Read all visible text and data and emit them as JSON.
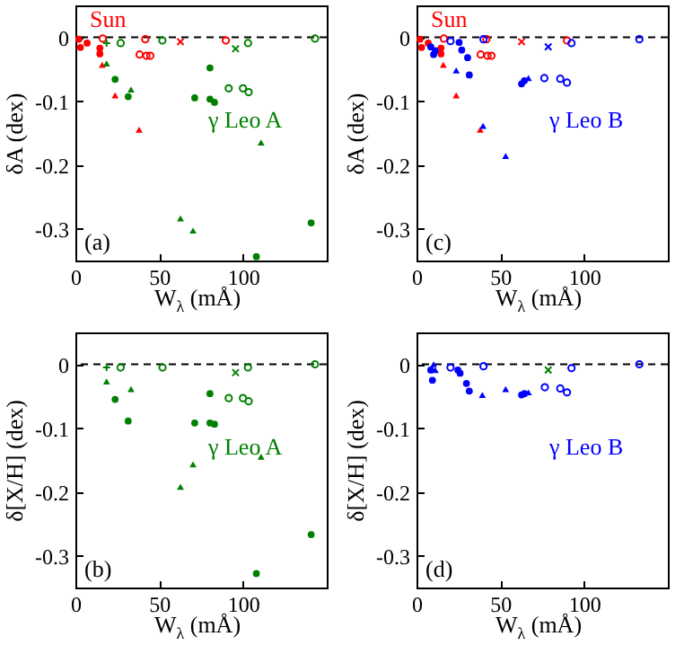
{
  "chart_data": [
    {
      "type": "scatter",
      "xlabel": "W$_{λ}$ (mÅ)",
      "ylabel": "δA (dex)",
      "xlim": [
        0,
        150
      ],
      "ylim": [
        -0.35,
        0.05
      ],
      "xticks": [
        0,
        50,
        100
      ],
      "yticks": [
        0,
        -0.1,
        -0.2,
        -0.3
      ],
      "ref_lines": [
        {
          "axis": "y",
          "value": 0,
          "line_style": "dashed",
          "color": "#000000"
        }
      ],
      "annotations": [
        "(a)"
      ],
      "series": [
        {
          "name": "Sun",
          "color": "#ff0000",
          "marker": "circle",
          "x": [
            2,
            3,
            7,
            14.6,
            14.6
          ],
          "values": [
            -0.003,
            -0.016,
            -0.009,
            -0.017,
            -0.026
          ]
        },
        {
          "color": "#ff0000",
          "marker": "triangle",
          "x": [
            16,
            23.7,
            38
          ],
          "values": [
            -0.043,
            -0.091,
            -0.145
          ]
        },
        {
          "color": "#ff0000",
          "marker": "circle-open",
          "x": [
            16.3,
            38.3,
            42.4,
            44.7,
            41.7,
            89.8
          ],
          "values": [
            -0.002,
            -0.027,
            -0.029,
            -0.029,
            -0.003,
            -0.005
          ]
        },
        {
          "color": "#ff0000",
          "marker": "cross",
          "x": [
            62.7
          ],
          "values": [
            -0.007
          ]
        },
        {
          "color": "#008000",
          "marker": "plus",
          "x": [
            18.6
          ],
          "values": [
            -0.009
          ]
        },
        {
          "color": "#008000",
          "marker": "circle-open",
          "x": [
            27,
            51.9,
            91.5,
            100,
            103.4,
            103,
            143
          ],
          "values": [
            -0.009,
            -0.005,
            -0.08,
            -0.08,
            -0.086,
            -0.009,
            -0.002
          ]
        },
        {
          "color": "#008000",
          "marker": "cross",
          "x": [
            95.6
          ],
          "values": [
            -0.018
          ]
        },
        {
          "name": "γ Leo A",
          "color": "#008000",
          "marker": "circle",
          "x": [
            23.7,
            31.5,
            71.2,
            80.3,
            80.3,
            83,
            108,
            140.7
          ],
          "values": [
            -0.066,
            -0.093,
            -0.095,
            -0.048,
            -0.097,
            -0.102,
            -0.344,
            -0.291
          ]
        },
        {
          "color": "#008000",
          "marker": "triangle",
          "x": [
            18.6,
            33.2,
            62.7,
            70.2,
            110.8
          ],
          "values": [
            -0.041,
            -0.082,
            -0.284,
            -0.303,
            -0.165
          ]
        }
      ]
    },
    {
      "type": "scatter",
      "xlabel": "W$_{λ}$ (mÅ)",
      "ylabel": "δA (dex)",
      "xlim": [
        0,
        150
      ],
      "ylim": [
        -0.35,
        0.05
      ],
      "xticks": [
        0,
        50,
        100
      ],
      "yticks": [
        0,
        -0.1,
        -0.2,
        -0.3
      ],
      "ref_lines": [
        {
          "axis": "y",
          "value": 0,
          "line_style": "dashed",
          "color": "#000000"
        }
      ],
      "annotations": [
        "(c)"
      ],
      "series": [
        {
          "name": "Sun",
          "color": "#ff0000",
          "marker": "circle",
          "x": [
            2,
            3,
            7,
            14.6,
            14.6
          ],
          "values": [
            -0.003,
            -0.016,
            -0.009,
            -0.017,
            -0.026
          ]
        },
        {
          "color": "#ff0000",
          "marker": "triangle",
          "x": [
            16,
            23.7,
            38
          ],
          "values": [
            -0.043,
            -0.091,
            -0.145
          ]
        },
        {
          "color": "#ff0000",
          "marker": "circle-open",
          "x": [
            16.3,
            38.3,
            42.4,
            44.7,
            41.7,
            89.8
          ],
          "values": [
            -0.002,
            -0.027,
            -0.029,
            -0.029,
            -0.003,
            -0.005
          ]
        },
        {
          "color": "#ff0000",
          "marker": "cross",
          "x": [
            62.7
          ],
          "values": [
            -0.007
          ]
        },
        {
          "name": "γ Leo B",
          "color": "#0000ff",
          "marker": "circle",
          "x": [
            8.5,
            10.2,
            11.2,
            25.4,
            27,
            30.5,
            31.5,
            62.7,
            64.4
          ],
          "values": [
            -0.015,
            -0.027,
            -0.021,
            -0.008,
            -0.02,
            -0.032,
            -0.059,
            -0.073,
            -0.068
          ]
        },
        {
          "color": "#0000ff",
          "marker": "triangle",
          "x": [
            23.7,
            39.7,
            53.2,
            66.8
          ],
          "values": [
            -0.052,
            -0.139,
            -0.186,
            -0.064
          ]
        },
        {
          "color": "#0000ff",
          "marker": "circle-open",
          "x": [
            20.3,
            40,
            76.3,
            85.8,
            89.8,
            92.5,
            133
          ],
          "values": [
            -0.006,
            -0.003,
            -0.064,
            -0.065,
            -0.071,
            -0.009,
            -0.003
          ]
        },
        {
          "color": "#0000ff",
          "marker": "cross",
          "x": [
            78.6
          ],
          "values": [
            -0.015
          ]
        }
      ]
    },
    {
      "type": "scatter",
      "xlabel": "W$_{λ}$ (mÅ)",
      "ylabel": "δ[X/H] (dex)",
      "xlim": [
        0,
        150
      ],
      "ylim": [
        -0.35,
        0.05
      ],
      "xticks": [
        0,
        50,
        100
      ],
      "yticks": [
        0,
        -0.1,
        -0.2,
        -0.3
      ],
      "ref_lines": [
        {
          "axis": "y",
          "value": 0,
          "line_style": "dashed",
          "color": "#000000"
        }
      ],
      "annotations": [
        "(b)"
      ],
      "series": [
        {
          "color": "#008000",
          "marker": "plus",
          "x": [
            18.6
          ],
          "values": [
            -0.005
          ]
        },
        {
          "color": "#008000",
          "marker": "circle-open",
          "x": [
            27,
            52,
            91.5,
            100,
            103.4,
            103,
            143
          ],
          "values": [
            -0.005,
            -0.005,
            -0.053,
            -0.053,
            -0.058,
            -0.005,
            0
          ]
        },
        {
          "color": "#008000",
          "marker": "cross",
          "x": [
            95.6
          ],
          "values": [
            -0.013
          ]
        },
        {
          "name": "γ Leo A",
          "color": "#008000",
          "marker": "circle",
          "x": [
            23.7,
            31.5,
            71.2,
            80.3,
            80.3,
            83,
            108,
            140.7
          ],
          "values": [
            -0.055,
            -0.089,
            -0.092,
            -0.046,
            -0.092,
            -0.094,
            -0.328,
            -0.267
          ]
        },
        {
          "color": "#008000",
          "marker": "triangle",
          "x": [
            18.6,
            33.2,
            62.7,
            70.2,
            110.8
          ],
          "values": [
            -0.027,
            -0.039,
            -0.192,
            -0.157,
            -0.145
          ]
        }
      ]
    },
    {
      "type": "scatter",
      "xlabel": "W$_{λ}$ (mÅ)",
      "ylabel": "δ[X/H] (dex)",
      "xlim": [
        0,
        150
      ],
      "ylim": [
        -0.35,
        0.05
      ],
      "xticks": [
        0,
        50,
        100
      ],
      "yticks": [
        0,
        -0.1,
        -0.2,
        -0.3
      ],
      "ref_lines": [
        {
          "axis": "y",
          "value": 0,
          "line_style": "dashed",
          "color": "#000000"
        }
      ],
      "annotations": [
        "(d)"
      ],
      "series": [
        {
          "name": "γ Leo B",
          "color": "#0000ff",
          "marker": "circle",
          "x": [
            8.5,
            9.5,
            24.7,
            26,
            29.8,
            31.5,
            62.7,
            64.4
          ],
          "values": [
            -0.009,
            -0.025,
            -0.009,
            -0.014,
            -0.03,
            -0.042,
            -0.048,
            -0.046
          ]
        },
        {
          "color": "#0000ff",
          "marker": "triangle",
          "x": [
            10.2,
            11.2,
            39.3,
            53.2,
            66.8
          ],
          "values": [
            0,
            -0.009,
            -0.048,
            -0.039,
            -0.044
          ]
        },
        {
          "color": "#0000ff",
          "marker": "circle-open",
          "x": [
            20.3,
            40,
            76.6,
            85.8,
            89.8,
            92.5,
            133
          ],
          "values": [
            -0.005,
            -0.003,
            -0.036,
            -0.038,
            -0.044,
            -0.006,
            0
          ]
        },
        {
          "color": "#008000",
          "marker": "cross",
          "x": [
            78.6
          ],
          "values": [
            -0.009
          ]
        }
      ]
    }
  ]
}
